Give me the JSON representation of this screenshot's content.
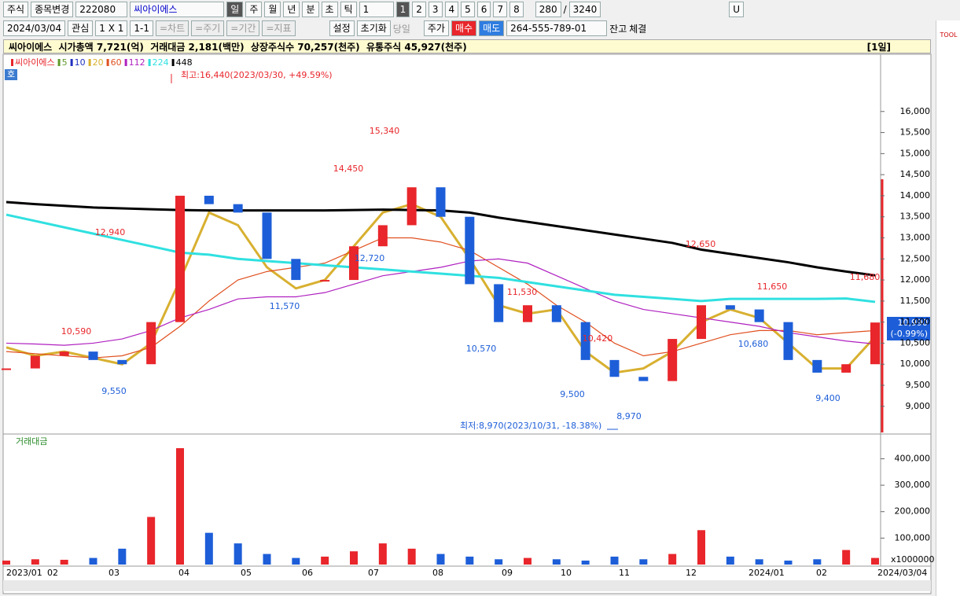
{
  "toolbar": {
    "market": "주식",
    "change": "종목변경",
    "code": "222080",
    "name": "씨아이에스",
    "periods": [
      "일",
      "주",
      "월",
      "년",
      "분",
      "초",
      "틱"
    ],
    "period_n": "1",
    "pages": [
      "1",
      "2",
      "3",
      "4",
      "5",
      "6",
      "7",
      "8"
    ],
    "count": "280",
    "sep": "/",
    "total": "3240",
    "u": "U"
  },
  "toolbar2": {
    "date": "2024/03/04",
    "watch": "관심",
    "layout": "1 X 1",
    "layout_btn": "1-1",
    "tools": [
      "=차트",
      "=주기",
      "=기간",
      "=지표"
    ],
    "settings": "설정",
    "reset": "초기화",
    "today": "당일",
    "price": "주가",
    "buy": "매수",
    "sell": "매도",
    "account": "264-555-789-01",
    "balance": "잔고",
    "filled": "체결"
  },
  "info": {
    "text": "씨아이에스  시가총액 7,721(억)  거래대금 2,181(백만)  상장주식수 70,257(천주)  유통주식 45,927(천주)",
    "period": "[1일]"
  },
  "side_tool": "TOOL",
  "badge": "호",
  "x_labels": [
    "2023/01",
    "02",
    "03",
    "04",
    "05",
    "06",
    "07",
    "08",
    "09",
    "10",
    "11",
    "12",
    "2024/01",
    "02",
    "2024/03/04"
  ],
  "chart_data": [
    {
      "type": "candlestick",
      "name": "씨아이에스",
      "up_color": "#e8262b",
      "down_color": "#1d5ed8",
      "close": [
        9900,
        10200,
        10300,
        10100,
        10000,
        11000,
        14000,
        13800,
        13600,
        12500,
        12000,
        12000,
        12800,
        13300,
        14200,
        13500,
        11900,
        11000,
        11400,
        11000,
        10100,
        9700,
        9600,
        10600,
        11400,
        11300,
        11000,
        10100,
        9800,
        10000,
        10990
      ],
      "ylim": [
        8380,
        17340
      ],
      "yticks": [
        {
          "value": 9000,
          "label": "9,000"
        },
        {
          "value": 9500,
          "label": "9,500"
        },
        {
          "value": 10000,
          "label": "10,000"
        },
        {
          "value": 10500,
          "label": "10,500"
        },
        {
          "value": 11000,
          "label": "11,000"
        },
        {
          "value": 11500,
          "label": "11,500"
        },
        {
          "value": 12000,
          "label": "12,000"
        },
        {
          "value": 12500,
          "label": "12,500"
        },
        {
          "value": 13000,
          "label": "13,000"
        },
        {
          "value": 13500,
          "label": "13,500"
        },
        {
          "value": 14000,
          "label": "14,000"
        },
        {
          "value": 14500,
          "label": "14,500"
        },
        {
          "value": 15000,
          "label": "15,000"
        },
        {
          "value": 15500,
          "label": "15,500"
        },
        {
          "value": 16000,
          "label": "16,000"
        }
      ],
      "ma": [
        {
          "name": "5",
          "color": "#5f9a2a"
        },
        {
          "name": "10",
          "color": "#2030c0"
        },
        {
          "name": "20",
          "color": "#d8b030",
          "values": [
            10400,
            10200,
            10300,
            10150,
            10000,
            10500,
            12000,
            13600,
            13300,
            12300,
            11800,
            12000,
            12800,
            13600,
            13800,
            13500,
            12500,
            11400,
            11200,
            11300,
            10300,
            9800,
            9900,
            10300,
            11000,
            11300,
            11100,
            10500,
            9900,
            9900,
            10650
          ]
        },
        {
          "name": "60",
          "color": "#e05020",
          "values": [
            10300,
            10250,
            10200,
            10150,
            10200,
            10400,
            10900,
            11500,
            12000,
            12200,
            12300,
            12400,
            12700,
            13000,
            13000,
            12900,
            12700,
            12300,
            11900,
            11400,
            11000,
            10500,
            10200,
            10300,
            10500,
            10700,
            10800,
            10800,
            10700,
            10750,
            10800
          ]
        },
        {
          "name": "112",
          "color": "#b020c0",
          "values": [
            10500,
            10480,
            10450,
            10500,
            10600,
            10800,
            11100,
            11300,
            11550,
            11600,
            11600,
            11700,
            11900,
            12100,
            12200,
            12300,
            12450,
            12500,
            12400,
            12100,
            11800,
            11500,
            11300,
            11200,
            11100,
            11000,
            10900,
            10750,
            10650,
            10550,
            10480
          ]
        },
        {
          "name": "224",
          "color": "#30e0e0",
          "values": [
            13550,
            13400,
            13250,
            13100,
            12950,
            12800,
            12650,
            12600,
            12500,
            12450,
            12400,
            12350,
            12300,
            12250,
            12200,
            12150,
            12100,
            12050,
            11950,
            11850,
            11750,
            11650,
            11600,
            11550,
            11500,
            11550,
            11550,
            11550,
            11550,
            11560,
            11480
          ]
        },
        {
          "name": "448",
          "color": "#000000",
          "values": [
            13850,
            13800,
            13760,
            13720,
            13700,
            13680,
            13660,
            13650,
            13650,
            13650,
            13650,
            13650,
            13660,
            13670,
            13660,
            13650,
            13600,
            13480,
            13380,
            13280,
            13180,
            13080,
            12980,
            12880,
            12720,
            12620,
            12520,
            12420,
            12300,
            12200,
            12110
          ]
        }
      ],
      "high_note": "최고:16,440(2023/03/30, +49.59%)",
      "low_note": "최저:8,970(2023/10/31, -18.38%)",
      "peaks": [
        "12,940",
        "10,590",
        "9,550",
        "11,570",
        "14,450",
        "12,720",
        "15,340",
        "11,530",
        "10,570",
        "10,420",
        "9,500",
        "8,970",
        "12,650",
        "11,650",
        "10,680",
        "9,400",
        "11,680"
      ],
      "last_label": "10,990",
      "last_change": "(-0.99%)"
    },
    {
      "type": "bar",
      "title": "거래대금",
      "color": "#1d5ed8",
      "unit": "x1000000",
      "values": [
        15000,
        20000,
        18000,
        25000,
        60000,
        180000,
        440000,
        120000,
        80000,
        40000,
        25000,
        30000,
        50000,
        80000,
        60000,
        40000,
        30000,
        20000,
        25000,
        20000,
        15000,
        30000,
        20000,
        40000,
        130000,
        30000,
        20000,
        15000,
        20000,
        55000,
        25000
      ],
      "ylim": [
        0,
        440000
      ],
      "yticks": [
        {
          "value": 100000,
          "label": "100,000"
        },
        {
          "value": 200000,
          "label": "200,000"
        },
        {
          "value": 300000,
          "label": "300,000"
        },
        {
          "value": 400000,
          "label": "400,000"
        }
      ]
    }
  ]
}
